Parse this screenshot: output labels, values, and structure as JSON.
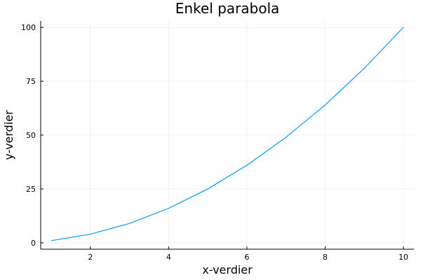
{
  "chart_data": {
    "type": "line",
    "title": "Enkel parabola",
    "xlabel": "x-verdier",
    "ylabel": "y-verdier",
    "xlim": [
      0.73,
      10.27
    ],
    "ylim": [
      -2.97,
      102.97
    ],
    "xticks": [
      2,
      4,
      6,
      8,
      10
    ],
    "yticks": [
      0,
      25,
      50,
      75,
      100
    ],
    "grid": true,
    "legend": "none",
    "series": [
      {
        "color": "#009AFA",
        "x": [
          1,
          2,
          3,
          4,
          5,
          6,
          7,
          8,
          9,
          10
        ],
        "y": [
          1,
          4,
          9,
          16,
          25,
          36,
          49,
          64,
          81,
          100
        ]
      }
    ]
  }
}
